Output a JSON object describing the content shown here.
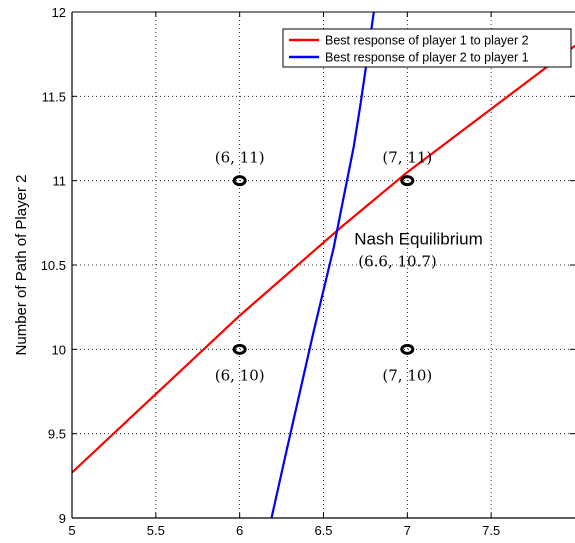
{
  "chart_data": {
    "type": "line",
    "title": "",
    "xlabel": "",
    "ylabel": "Number of Path of Player 2",
    "xlim": [
      5,
      8
    ],
    "ylim": [
      9,
      12
    ],
    "xticks": [
      "5",
      "5.5",
      "6",
      "6.5",
      "7",
      "7.5"
    ],
    "yticks": [
      "9",
      "9.5",
      "10",
      "10.5",
      "11",
      "11.5",
      "12"
    ],
    "grid": true,
    "legend_position": "top-right",
    "series": [
      {
        "name": "Best response of player 1 to player 2",
        "color": "#ff0000",
        "x": [
          5.0,
          6.0,
          6.6,
          7.0,
          8.0
        ],
        "y": [
          9.27,
          10.2,
          10.72,
          11.05,
          11.8
        ]
      },
      {
        "name": "Best response of player 2 to player 1",
        "color": "#0000ff",
        "x": [
          6.19,
          6.28,
          6.36,
          6.44,
          6.5,
          6.56,
          6.62,
          6.68,
          6.72,
          6.76,
          6.8
        ],
        "y": [
          9.0,
          9.4,
          9.75,
          10.1,
          10.35,
          10.6,
          10.9,
          11.2,
          11.45,
          11.72,
          12.0
        ]
      }
    ],
    "points": [
      {
        "x": 6,
        "y": 11,
        "label": "(6, 11)",
        "label_pos": "above"
      },
      {
        "x": 7,
        "y": 11,
        "label": "(7, 11)",
        "label_pos": "above"
      },
      {
        "x": 6,
        "y": 10,
        "label": "(6, 10)",
        "label_pos": "below"
      },
      {
        "x": 7,
        "y": 10,
        "label": "(7, 10)",
        "label_pos": "below"
      }
    ],
    "annotation": {
      "title": "Nash Equilibrium",
      "value": "(6.6, 10.7)",
      "x": 6.6,
      "y": 10.7
    }
  }
}
